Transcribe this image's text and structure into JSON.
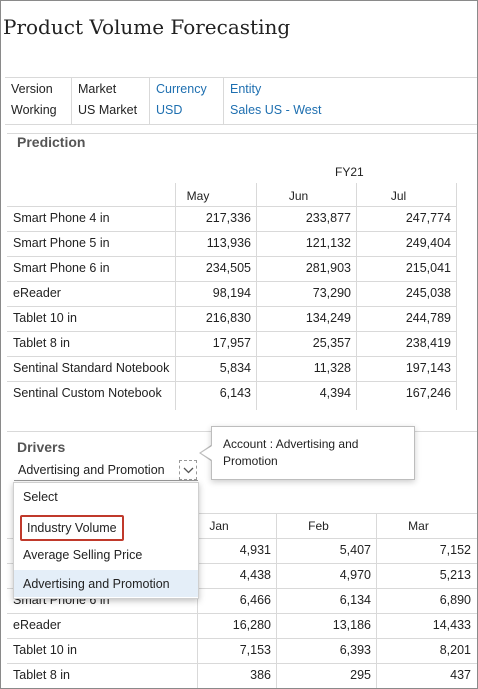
{
  "title": "Product Volume Forecasting",
  "pov": [
    {
      "header": "Version",
      "value": "Working",
      "link": false
    },
    {
      "header": "Market",
      "value": "US Market",
      "link": false
    },
    {
      "header": "Currency",
      "value": "USD",
      "link": true
    },
    {
      "header": "Entity",
      "value": "Sales US - West",
      "link": true
    }
  ],
  "prediction": {
    "title": "Prediction",
    "year": "FY21",
    "columns": [
      "May",
      "Jun",
      "Jul"
    ],
    "rows": [
      {
        "label": "Smart Phone 4 in",
        "values": [
          "217,336",
          "233,877",
          "247,774"
        ]
      },
      {
        "label": "Smart Phone 5 in",
        "values": [
          "113,936",
          "121,132",
          "249,404"
        ]
      },
      {
        "label": "Smart Phone 6 in",
        "values": [
          "234,505",
          "281,903",
          "215,041"
        ]
      },
      {
        "label": "eReader",
        "values": [
          "98,194",
          "73,290",
          "245,038"
        ]
      },
      {
        "label": "Tablet 10 in",
        "values": [
          "216,830",
          "134,249",
          "244,789"
        ]
      },
      {
        "label": "Tablet 8 in",
        "values": [
          "17,957",
          "25,357",
          "238,419"
        ]
      },
      {
        "label": "Sentinal Standard Notebook",
        "values": [
          "5,834",
          "11,328",
          "197,143"
        ]
      },
      {
        "label": "Sentinal Custom Notebook",
        "values": [
          "6,143",
          "4,394",
          "167,246"
        ]
      }
    ]
  },
  "drivers": {
    "title": "Drivers",
    "selected": "Advertising and Promotion",
    "tooltip": "Account : Advertising and Promotion",
    "menu": [
      "Select",
      "Industry Volume",
      "Average Selling Price",
      "Advertising and Promotion"
    ],
    "columns": [
      "Jan",
      "Feb",
      "Mar"
    ],
    "rows": [
      {
        "label": "",
        "values": [
          "4,931",
          "5,407",
          "7,152"
        ]
      },
      {
        "label": "",
        "values": [
          "4,438",
          "4,970",
          "5,213"
        ]
      },
      {
        "label": "Smart Phone 6 in",
        "values": [
          "6,466",
          "6,134",
          "6,890"
        ]
      },
      {
        "label": "eReader",
        "values": [
          "16,280",
          "13,186",
          "14,433"
        ]
      },
      {
        "label": "Tablet 10 in",
        "values": [
          "7,153",
          "6,393",
          "8,201"
        ]
      },
      {
        "label": "Tablet 8 in",
        "values": [
          "386",
          "295",
          "437"
        ]
      }
    ]
  }
}
